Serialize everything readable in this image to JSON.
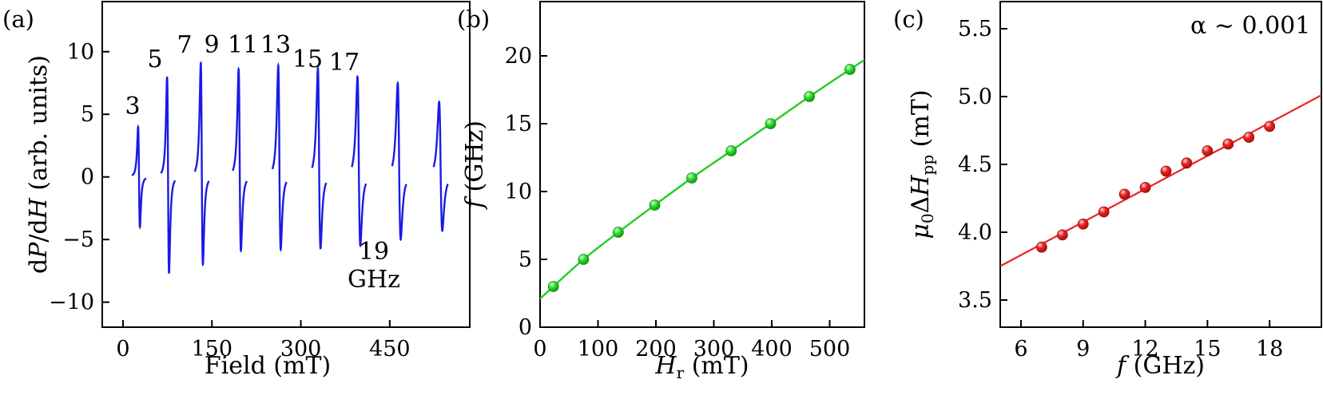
{
  "figure": {
    "panel_labels": [
      "(a)",
      "(b)",
      "(c)"
    ]
  },
  "chart_data": [
    {
      "type": "line",
      "panel": "(a)",
      "xlabel": "Field (mT)",
      "ylabel": "dP/dH (arb. units)",
      "xlim": [
        -35,
        585
      ],
      "ylim": [
        -12,
        14
      ],
      "xticks": [
        0,
        150,
        300,
        450
      ],
      "yticks": [
        -10,
        -5,
        0,
        5,
        10
      ],
      "xtick_labels": [
        "0",
        "150",
        "300",
        "450"
      ],
      "ytick_labels": [
        "−10",
        "−5",
        "0",
        "5",
        "10"
      ],
      "series_color": "#1a1ae6",
      "series": [
        {
          "name": "3",
          "center": 27,
          "upper": 4.0,
          "lower": -4.0
        },
        {
          "name": "5",
          "center": 76,
          "upper": 8.0,
          "lower": -7.7
        },
        {
          "name": "7",
          "center": 133,
          "upper": 9.1,
          "lower": -7.0
        },
        {
          "name": "9",
          "center": 197,
          "upper": 8.6,
          "lower": -5.9
        },
        {
          "name": "11",
          "center": 264,
          "upper": 8.9,
          "lower": -5.8
        },
        {
          "name": "13",
          "center": 331,
          "upper": 8.7,
          "lower": -5.7
        },
        {
          "name": "15",
          "center": 398,
          "upper": 8.0,
          "lower": -5.5
        },
        {
          "name": "17",
          "center": 466,
          "upper": 7.5,
          "lower": -5.0
        },
        {
          "name": "19",
          "center": 536,
          "upper": 6.0,
          "lower": -4.3
        }
      ],
      "annotations": [
        "3",
        "5",
        "7",
        "9",
        "11",
        "13",
        "15",
        "17",
        "19",
        "GHz"
      ]
    },
    {
      "type": "scatter",
      "panel": "(b)",
      "xlabel": "H_r (mT)",
      "ylabel": "f (GHz)",
      "xlim": [
        0,
        560
      ],
      "ylim": [
        0,
        24
      ],
      "xticks": [
        0,
        100,
        200,
        300,
        400,
        500
      ],
      "yticks": [
        0,
        5,
        10,
        15,
        20
      ],
      "xtick_labels": [
        "0",
        "100",
        "200",
        "300",
        "400",
        "500"
      ],
      "ytick_labels": [
        "0",
        "5",
        "10",
        "15",
        "20"
      ],
      "marker_color": "#33dd33",
      "line_color": "#22cc22",
      "x": [
        23,
        75,
        135,
        198,
        262,
        330,
        398,
        465,
        535
      ],
      "y": [
        3,
        5,
        7,
        9,
        11,
        13,
        15,
        17,
        19
      ],
      "fit_points": [
        [
          0,
          2.1
        ],
        [
          23,
          3.0
        ],
        [
          75,
          5.0
        ],
        [
          135,
          7.0
        ],
        [
          198,
          9.0
        ],
        [
          262,
          11.0
        ],
        [
          330,
          13.0
        ],
        [
          398,
          15.0
        ],
        [
          465,
          17.0
        ],
        [
          535,
          19.0
        ],
        [
          560,
          19.7
        ]
      ]
    },
    {
      "type": "scatter",
      "panel": "(c)",
      "xlabel": "f (GHz)",
      "ylabel": "μ0ΔHpp (mT)",
      "xlim": [
        5,
        20.5
      ],
      "ylim": [
        3.3,
        5.7
      ],
      "xticks": [
        6,
        9,
        12,
        15,
        18
      ],
      "yticks": [
        3.5,
        4.0,
        4.5,
        5.0,
        5.5
      ],
      "xtick_labels": [
        "6",
        "9",
        "12",
        "15",
        "18"
      ],
      "ytick_labels": [
        "3.5",
        "4.0",
        "4.5",
        "5.0",
        "5.5"
      ],
      "marker_color": "#ee2222",
      "line_color": "#ee2222",
      "x": [
        7,
        8,
        9,
        10,
        11,
        12,
        13,
        14,
        15,
        16,
        17,
        18
      ],
      "y": [
        3.89,
        3.98,
        4.06,
        4.15,
        4.28,
        4.33,
        4.45,
        4.51,
        4.6,
        4.65,
        4.7,
        4.78
      ],
      "fit_line": [
        [
          5,
          3.75
        ],
        [
          20.5,
          5.01
        ]
      ],
      "annotation": "α ~ 0.001"
    }
  ]
}
